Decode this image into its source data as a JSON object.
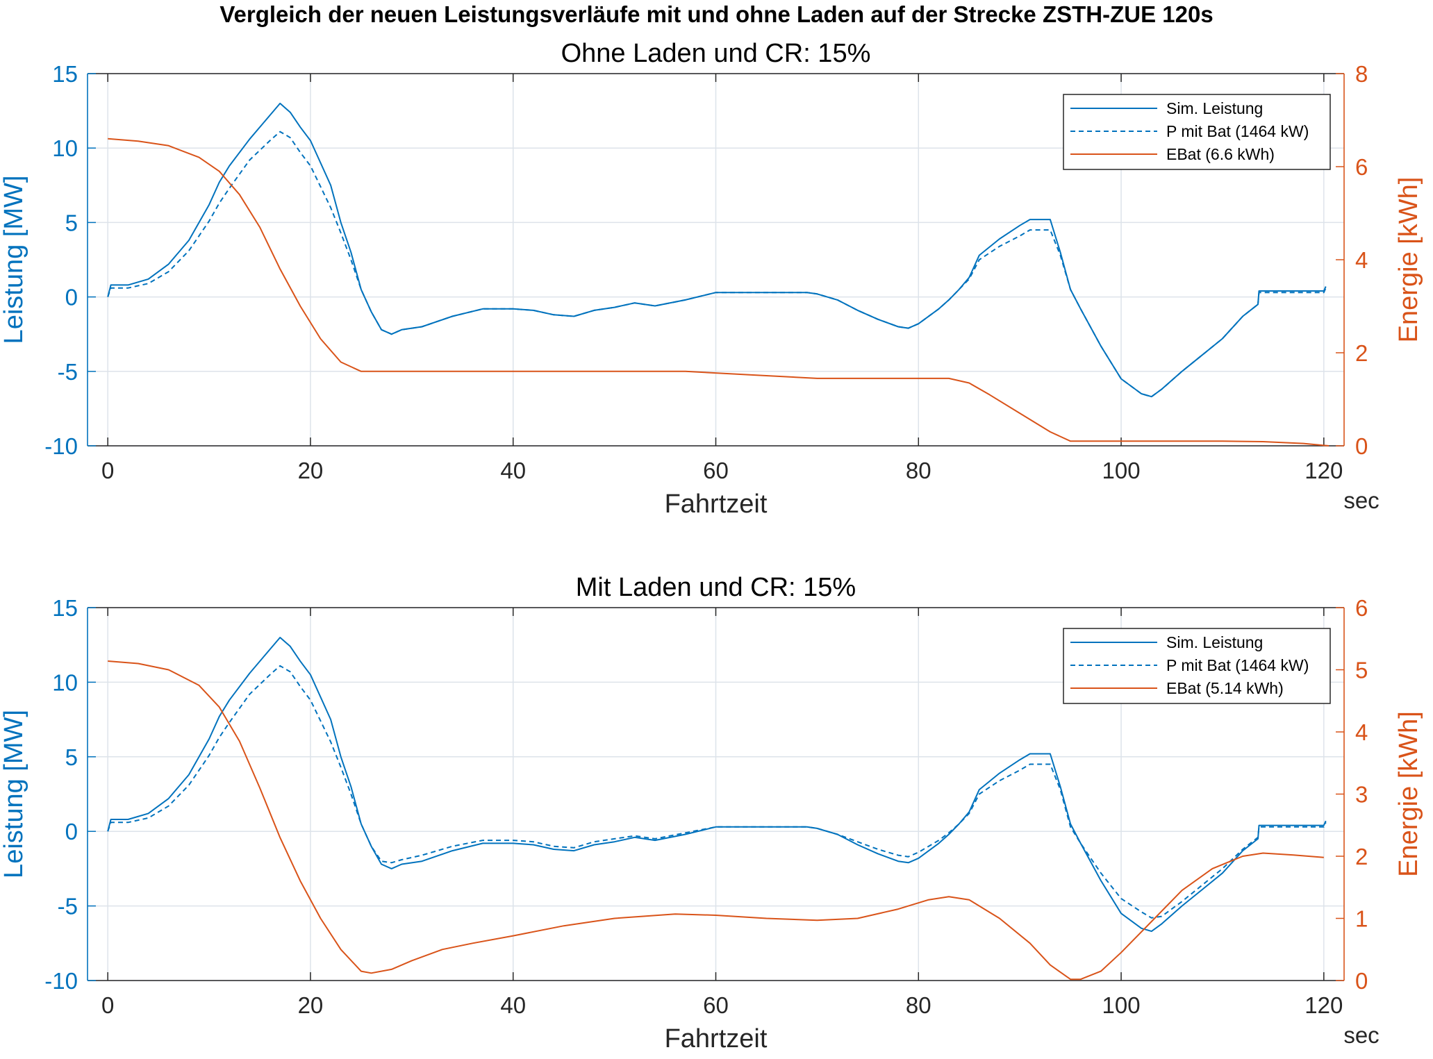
{
  "figure_title": "Vergleich der neuen Leistungsverläufe mit und ohne Laden auf der Strecke ZSTH-ZUE 120s",
  "colors": {
    "left_axis": "#0072BD",
    "right_axis": "#D95319",
    "grid": "#DDE3EA"
  },
  "chart_data": [
    {
      "type": "line",
      "title": "Ohne Laden und CR: 15%",
      "xlabel": "Fahrtzeit",
      "xunit": "sec",
      "ylabel_left": "Leistung [MW]",
      "ylabel_right": "Energie [kWh]",
      "xlim": [
        -2,
        122
      ],
      "ylim_left": [
        -10,
        15
      ],
      "ylim_right": [
        0,
        8
      ],
      "xticks": [
        "0",
        "20",
        "40",
        "60",
        "80",
        "100",
        "120"
      ],
      "yticks_left": [
        "-10",
        "-5",
        "0",
        "5",
        "10",
        "15"
      ],
      "yticks_right": [
        "0",
        "2",
        "4",
        "6",
        "8"
      ],
      "grid": true,
      "legend_position": "top-right",
      "series": [
        {
          "name": "Sim. Leistung",
          "axis": "left",
          "style": "solid",
          "color": "#0072BD",
          "x": [
            0,
            0.3,
            2,
            4,
            6,
            8,
            10,
            11,
            12,
            14,
            16,
            17,
            18,
            19,
            20,
            22,
            23,
            24,
            25,
            26,
            27,
            28,
            29,
            31,
            34,
            37,
            40,
            42,
            44,
            46,
            48,
            50,
            52,
            54,
            57,
            60,
            63,
            66,
            69,
            70,
            72,
            74,
            76,
            78,
            79,
            80,
            82,
            83,
            84,
            85,
            86,
            88,
            90,
            91,
            92,
            93,
            94,
            95,
            96,
            98,
            100,
            102,
            103,
            104,
            106,
            108,
            110,
            112,
            113.5,
            113.6,
            116,
            118,
            120,
            120.2
          ],
          "y": [
            0,
            0.8,
            0.8,
            1.2,
            2.2,
            3.8,
            6.2,
            7.7,
            8.8,
            10.6,
            12.2,
            13,
            12.4,
            11.4,
            10.5,
            7.5,
            5,
            3,
            0.5,
            -1,
            -2.2,
            -2.5,
            -2.2,
            -2,
            -1.3,
            -0.8,
            -0.8,
            -0.9,
            -1.2,
            -1.3,
            -0.9,
            -0.7,
            -0.4,
            -0.6,
            -0.2,
            0.3,
            0.3,
            0.3,
            0.3,
            0.2,
            -0.2,
            -0.9,
            -1.5,
            -2,
            -2.1,
            -1.8,
            -0.8,
            -0.2,
            0.5,
            1.3,
            2.8,
            3.9,
            4.8,
            5.2,
            5.2,
            5.2,
            3,
            0.5,
            -0.8,
            -3.3,
            -5.5,
            -6.5,
            -6.7,
            -6.2,
            -5,
            -3.9,
            -2.8,
            -1.3,
            -0.5,
            0.4,
            0.4,
            0.4,
            0.4,
            0.7
          ]
        },
        {
          "name": "P mit Bat (1464 kW)",
          "axis": "left",
          "style": "dashed",
          "color": "#0072BD",
          "x": [
            0,
            0.3,
            2,
            4,
            6,
            8,
            10,
            11,
            12,
            14,
            16,
            17,
            18,
            19,
            20,
            22,
            23,
            24,
            25,
            26,
            27,
            28,
            29,
            31,
            34,
            37,
            40,
            42,
            44,
            46,
            48,
            50,
            52,
            54,
            57,
            60,
            63,
            66,
            69,
            70,
            72,
            74,
            76,
            78,
            79,
            80,
            82,
            83,
            84,
            85,
            86,
            88,
            90,
            91,
            92,
            93,
            94,
            95,
            96,
            98,
            100,
            102,
            103,
            104,
            106,
            108,
            110,
            112,
            113.5,
            113.6,
            116,
            118,
            120,
            120.2
          ],
          "y": [
            0,
            0.6,
            0.6,
            0.9,
            1.7,
            3.1,
            5.1,
            6.3,
            7.3,
            9.2,
            10.5,
            11.1,
            10.7,
            9.7,
            8.8,
            6,
            4.3,
            2.5,
            0.5,
            -1,
            -2.2,
            -2.5,
            -2.2,
            -2,
            -1.3,
            -0.8,
            -0.8,
            -0.9,
            -1.2,
            -1.3,
            -0.9,
            -0.7,
            -0.4,
            -0.6,
            -0.2,
            0.3,
            0.3,
            0.3,
            0.3,
            0.2,
            -0.2,
            -0.9,
            -1.5,
            -2,
            -2.1,
            -1.8,
            -0.8,
            -0.2,
            0.5,
            1.2,
            2.5,
            3.4,
            4.1,
            4.5,
            4.5,
            4.5,
            2.8,
            0.5,
            -0.8,
            -3.3,
            -5.5,
            -6.5,
            -6.7,
            -6.2,
            -5,
            -3.9,
            -2.8,
            -1.3,
            -0.5,
            0.3,
            0.3,
            0.3,
            0.3,
            0.6
          ]
        },
        {
          "name": "EBat (6.6 kWh)",
          "axis": "right",
          "style": "solid",
          "color": "#D95319",
          "x": [
            0,
            3,
            6,
            9,
            11,
            13,
            15,
            17,
            19,
            21,
            23,
            25,
            28,
            35,
            45,
            57,
            64,
            70,
            75,
            83,
            85,
            87,
            90,
            93,
            95,
            97,
            100,
            110,
            114,
            118,
            120.5
          ],
          "y": [
            6.6,
            6.55,
            6.45,
            6.2,
            5.9,
            5.4,
            4.7,
            3.8,
            3.0,
            2.3,
            1.8,
            1.6,
            1.6,
            1.6,
            1.6,
            1.6,
            1.52,
            1.45,
            1.45,
            1.45,
            1.35,
            1.1,
            0.7,
            0.3,
            0.1,
            0.1,
            0.1,
            0.1,
            0.09,
            0.05,
            0.0
          ]
        }
      ]
    },
    {
      "type": "line",
      "title": "Mit Laden und CR: 15%",
      "xlabel": "Fahrtzeit",
      "xunit": "sec",
      "ylabel_left": "Leistung [MW]",
      "ylabel_right": "Energie [kWh]",
      "xlim": [
        -2,
        122
      ],
      "ylim_left": [
        -10,
        15
      ],
      "ylim_right": [
        0,
        6
      ],
      "xticks": [
        "0",
        "20",
        "40",
        "60",
        "80",
        "100",
        "120"
      ],
      "yticks_left": [
        "-10",
        "-5",
        "0",
        "5",
        "10",
        "15"
      ],
      "yticks_right": [
        "0",
        "1",
        "2",
        "3",
        "4",
        "5",
        "6"
      ],
      "grid": true,
      "legend_position": "top-right",
      "series": [
        {
          "name": "Sim. Leistung",
          "axis": "left",
          "style": "solid",
          "color": "#0072BD",
          "x": [
            0,
            0.3,
            2,
            4,
            6,
            8,
            10,
            11,
            12,
            14,
            16,
            17,
            18,
            19,
            20,
            22,
            23,
            24,
            25,
            26,
            27,
            28,
            29,
            31,
            34,
            37,
            40,
            42,
            44,
            46,
            48,
            50,
            52,
            54,
            57,
            60,
            63,
            66,
            69,
            70,
            72,
            74,
            76,
            78,
            79,
            80,
            82,
            83,
            84,
            85,
            86,
            88,
            90,
            91,
            92,
            93,
            94,
            95,
            96,
            98,
            100,
            102,
            103,
            104,
            106,
            108,
            110,
            112,
            113.5,
            113.6,
            116,
            118,
            120,
            120.2
          ],
          "y": [
            0,
            0.8,
            0.8,
            1.2,
            2.2,
            3.8,
            6.2,
            7.7,
            8.8,
            10.6,
            12.2,
            13,
            12.4,
            11.4,
            10.5,
            7.5,
            5,
            3,
            0.5,
            -1,
            -2.2,
            -2.5,
            -2.2,
            -2,
            -1.3,
            -0.8,
            -0.8,
            -0.9,
            -1.2,
            -1.3,
            -0.9,
            -0.7,
            -0.4,
            -0.6,
            -0.2,
            0.3,
            0.3,
            0.3,
            0.3,
            0.2,
            -0.2,
            -0.9,
            -1.5,
            -2,
            -2.1,
            -1.8,
            -0.8,
            -0.2,
            0.5,
            1.3,
            2.8,
            3.9,
            4.8,
            5.2,
            5.2,
            5.2,
            3,
            0.5,
            -0.8,
            -3.3,
            -5.5,
            -6.5,
            -6.7,
            -6.2,
            -5,
            -3.9,
            -2.8,
            -1.3,
            -0.5,
            0.4,
            0.4,
            0.4,
            0.4,
            0.7
          ]
        },
        {
          "name": "P mit Bat (1464 kW)",
          "axis": "left",
          "style": "dashed",
          "color": "#0072BD",
          "x": [
            0,
            0.3,
            2,
            4,
            6,
            8,
            10,
            11,
            12,
            14,
            16,
            17,
            18,
            19,
            20,
            22,
            23,
            24,
            25,
            26,
            27,
            28,
            29,
            31,
            34,
            37,
            40,
            42,
            44,
            46,
            48,
            50,
            52,
            54,
            57,
            60,
            63,
            66,
            69,
            70,
            72,
            74,
            76,
            78,
            79,
            80,
            82,
            83,
            84,
            85,
            86,
            88,
            90,
            91,
            92,
            93,
            94,
            95,
            96,
            98,
            100,
            102,
            103,
            104,
            106,
            108,
            110,
            112,
            113.5,
            113.6,
            116,
            118,
            120,
            120.2
          ],
          "y": [
            0,
            0.6,
            0.6,
            0.9,
            1.7,
            3.1,
            5.1,
            6.3,
            7.3,
            9.2,
            10.5,
            11.1,
            10.7,
            9.7,
            8.8,
            6,
            4.3,
            2.5,
            0.5,
            -1,
            -2,
            -2.1,
            -1.9,
            -1.6,
            -1,
            -0.6,
            -0.6,
            -0.7,
            -1,
            -1.1,
            -0.7,
            -0.5,
            -0.3,
            -0.5,
            -0.1,
            0.3,
            0.3,
            0.3,
            0.3,
            0.2,
            -0.2,
            -0.7,
            -1.2,
            -1.6,
            -1.7,
            -1.4,
            -0.6,
            -0.1,
            0.5,
            1.2,
            2.5,
            3.4,
            4.1,
            4.5,
            4.5,
            4.5,
            2.8,
            0.3,
            -0.8,
            -2.8,
            -4.5,
            -5.4,
            -5.8,
            -5.7,
            -4.7,
            -3.6,
            -2.5,
            -1.2,
            -0.4,
            0.3,
            0.3,
            0.3,
            0.3,
            0.6
          ]
        },
        {
          "name": "EBat (5.14 kWh)",
          "axis": "right",
          "style": "solid",
          "color": "#D95319",
          "x": [
            0,
            3,
            6,
            9,
            11,
            13,
            15,
            17,
            19,
            21,
            23,
            25,
            26,
            28,
            30,
            33,
            36,
            40,
            45,
            50,
            56,
            60,
            65,
            70,
            74,
            78,
            81,
            83,
            85,
            88,
            91,
            93,
            95,
            96,
            98,
            100,
            103,
            106,
            109,
            112,
            114,
            117,
            120
          ],
          "y": [
            5.14,
            5.1,
            5.0,
            4.75,
            4.4,
            3.85,
            3.1,
            2.3,
            1.6,
            1.0,
            0.5,
            0.15,
            0.12,
            0.18,
            0.32,
            0.5,
            0.6,
            0.72,
            0.88,
            1.0,
            1.07,
            1.05,
            1.0,
            0.97,
            1.0,
            1.15,
            1.3,
            1.35,
            1.3,
            1.0,
            0.6,
            0.25,
            0.02,
            0.02,
            0.15,
            0.45,
            0.95,
            1.45,
            1.8,
            2.0,
            2.05,
            2.02,
            1.98
          ]
        }
      ]
    }
  ]
}
